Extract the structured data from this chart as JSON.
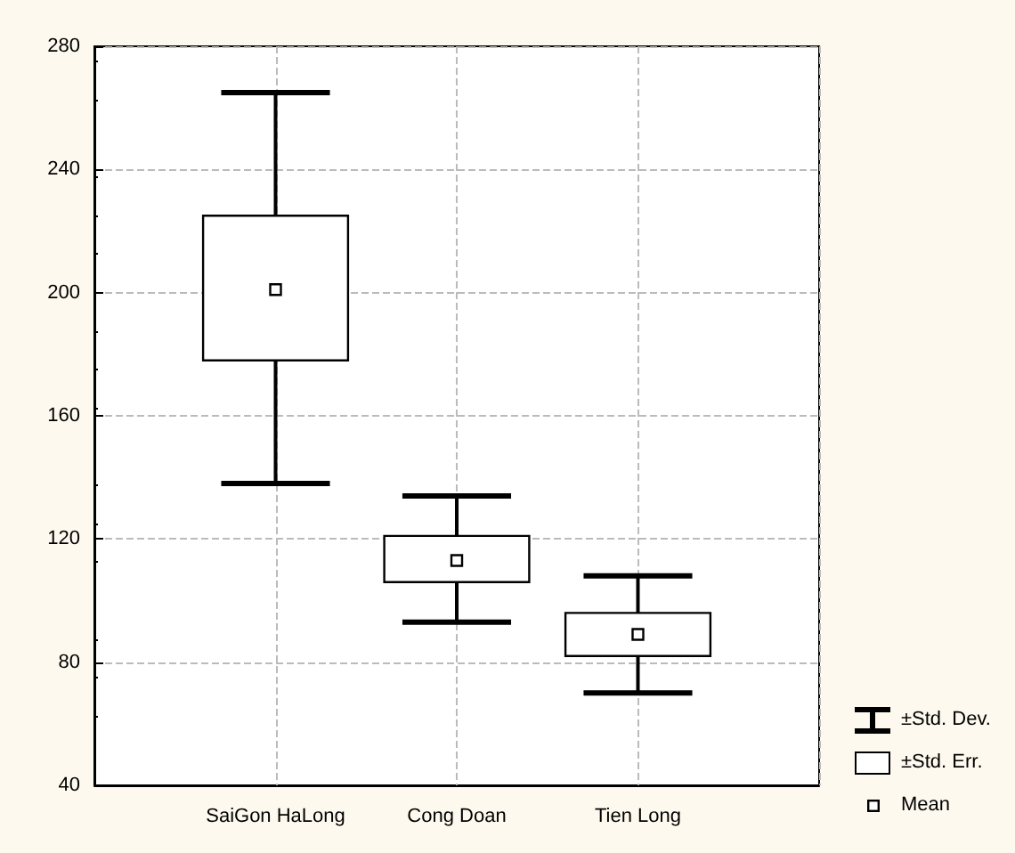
{
  "chart_data": {
    "type": "box",
    "categories": [
      "SaiGon HaLong",
      "Cong Doan",
      "Tien Long"
    ],
    "boxes": [
      {
        "low": 138,
        "q1": 178,
        "q3": 225,
        "high": 265,
        "mean": 201
      },
      {
        "low": 93,
        "q1": 106,
        "q3": 121,
        "high": 134,
        "mean": 113
      },
      {
        "low": 70,
        "q1": 82,
        "q3": 96,
        "high": 108,
        "mean": 89
      }
    ],
    "annotations": [
      "±Std. Dev.",
      "±Std. Err.",
      "Mean"
    ],
    "ylim": [
      40,
      280
    ],
    "yticks": [
      40,
      80,
      120,
      160,
      200,
      240,
      280
    ],
    "grid": true
  }
}
